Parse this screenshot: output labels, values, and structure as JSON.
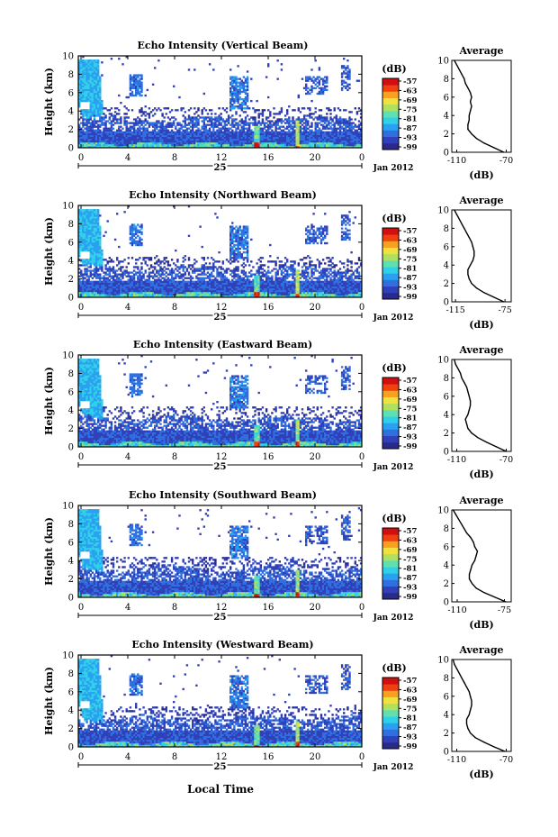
{
  "figure": {
    "ylabel": "Height (km)",
    "xlabel": "Local Time",
    "date_label": "Jan 2012",
    "day_label": "25",
    "colorbar_unit": "(dB)",
    "colorbar_ticks": [
      "-57",
      "-63",
      "-69",
      "-75",
      "-81",
      "-87",
      "-93",
      "-99"
    ],
    "average_title": "Average",
    "average_xlabel": "(dB)",
    "colors": [
      "#2a2a8c",
      "#3040b8",
      "#2f6fe0",
      "#2aa0f0",
      "#30d0e8",
      "#60e0b0",
      "#b0e060",
      "#f0e040",
      "#f8a020",
      "#f04010",
      "#d01010"
    ]
  },
  "chart_data": [
    {
      "type": "heatmap",
      "title": "Echo Intensity (Vertical Beam)",
      "x_ticks": [
        "0",
        "4",
        "8",
        "12",
        "16",
        "20",
        "0"
      ],
      "xlim": [
        0,
        24
      ],
      "y_ticks": [
        "0",
        "2",
        "4",
        "6",
        "8",
        "10"
      ],
      "ylim": [
        0,
        10
      ],
      "clim": [
        -99,
        -57
      ],
      "profile": {
        "x_ticks": [
          "-110",
          "-70"
        ],
        "xlim": [
          -114,
          -66
        ],
        "heights": [
          0,
          0.5,
          1,
          1.5,
          2,
          2.5,
          3,
          3.5,
          4,
          4.5,
          5,
          5.5,
          6,
          6.5,
          7,
          7.5,
          8,
          8.5,
          9,
          9.5,
          10
        ],
        "values": [
          -72,
          -80,
          -88,
          -94,
          -98,
          -101,
          -101,
          -100,
          -100,
          -99,
          -98,
          -99,
          -98,
          -99,
          -101,
          -103,
          -104,
          -106,
          -108,
          -110,
          -112
        ]
      }
    },
    {
      "type": "heatmap",
      "title": "Echo Intensity (Northward Beam)",
      "x_ticks": [
        "0",
        "4",
        "8",
        "12",
        "16",
        "20",
        "0"
      ],
      "xlim": [
        0,
        24
      ],
      "y_ticks": [
        "0",
        "2",
        "4",
        "6",
        "8",
        "10"
      ],
      "ylim": [
        0,
        10
      ],
      "clim": [
        -99,
        -57
      ],
      "profile": {
        "x_ticks": [
          "-115",
          "-75"
        ],
        "xlim": [
          -118,
          -70
        ],
        "heights": [
          0,
          0.5,
          1,
          1.5,
          2,
          2.5,
          3,
          3.5,
          4,
          4.5,
          5,
          5.5,
          6,
          6.5,
          7,
          7.5,
          8,
          8.5,
          9,
          9.5,
          10
        ],
        "values": [
          -76,
          -84,
          -92,
          -98,
          -102,
          -104,
          -105,
          -105,
          -103,
          -101,
          -100,
          -100,
          -101,
          -102,
          -104,
          -106,
          -108,
          -110,
          -112,
          -114,
          -116
        ]
      }
    },
    {
      "type": "heatmap",
      "title": "Echo Intensity (Eastward Beam)",
      "x_ticks": [
        "0",
        "4",
        "8",
        "12",
        "16",
        "20",
        "0"
      ],
      "xlim": [
        0,
        24
      ],
      "y_ticks": [
        "0",
        "2",
        "4",
        "6",
        "8",
        "10"
      ],
      "ylim": [
        0,
        10
      ],
      "clim": [
        -99,
        -57
      ],
      "profile": {
        "x_ticks": [
          "-110",
          "-70"
        ],
        "xlim": [
          -114,
          -66
        ],
        "heights": [
          0,
          0.5,
          1,
          1.5,
          2,
          2.5,
          3,
          3.5,
          4,
          4.5,
          5,
          5.5,
          6,
          6.5,
          7,
          7.5,
          8,
          8.5,
          9,
          9.5,
          10
        ],
        "values": [
          -70,
          -78,
          -86,
          -93,
          -98,
          -101,
          -102,
          -103,
          -101,
          -100,
          -99,
          -99,
          -100,
          -101,
          -102,
          -104,
          -106,
          -107,
          -109,
          -111,
          -112
        ]
      }
    },
    {
      "type": "heatmap",
      "title": "Echo Intensity (Southward Beam)",
      "x_ticks": [
        "0",
        "4",
        "8",
        "12",
        "16",
        "20",
        "0"
      ],
      "xlim": [
        0,
        24
      ],
      "y_ticks": [
        "0",
        "2",
        "4",
        "6",
        "8",
        "10"
      ],
      "ylim": [
        0,
        10
      ],
      "clim": [
        -99,
        -57
      ],
      "profile": {
        "x_ticks": [
          "-110",
          "-75"
        ],
        "xlim": [
          -114,
          -70
        ],
        "heights": [
          0,
          0.5,
          1,
          1.5,
          2,
          2.5,
          3,
          3.5,
          4,
          4.5,
          5,
          5.5,
          6,
          6.5,
          7,
          7.5,
          8,
          8.5,
          9,
          9.5,
          10
        ],
        "values": [
          -74,
          -82,
          -90,
          -96,
          -99,
          -101,
          -101,
          -100,
          -99,
          -97,
          -96,
          -95,
          -97,
          -98,
          -100,
          -103,
          -105,
          -107,
          -109,
          -111,
          -113
        ]
      }
    },
    {
      "type": "heatmap",
      "title": "Echo Intensity (Westward Beam)",
      "x_ticks": [
        "0",
        "4",
        "8",
        "12",
        "16",
        "20",
        "0"
      ],
      "xlim": [
        0,
        24
      ],
      "y_ticks": [
        "0",
        "2",
        "4",
        "6",
        "8",
        "10"
      ],
      "ylim": [
        0,
        10
      ],
      "clim": [
        -99,
        -57
      ],
      "profile": {
        "x_ticks": [
          "-110",
          "-70"
        ],
        "xlim": [
          -114,
          -66
        ],
        "heights": [
          0,
          0.5,
          1,
          1.5,
          2,
          2.5,
          3,
          3.5,
          4,
          4.5,
          5,
          5.5,
          6,
          6.5,
          7,
          7.5,
          8,
          8.5,
          9,
          9.5,
          10
        ],
        "values": [
          -71,
          -80,
          -88,
          -95,
          -99,
          -101,
          -102,
          -102,
          -100,
          -99,
          -98,
          -98,
          -99,
          -100,
          -102,
          -104,
          -106,
          -108,
          -110,
          -112,
          -113
        ]
      }
    }
  ]
}
